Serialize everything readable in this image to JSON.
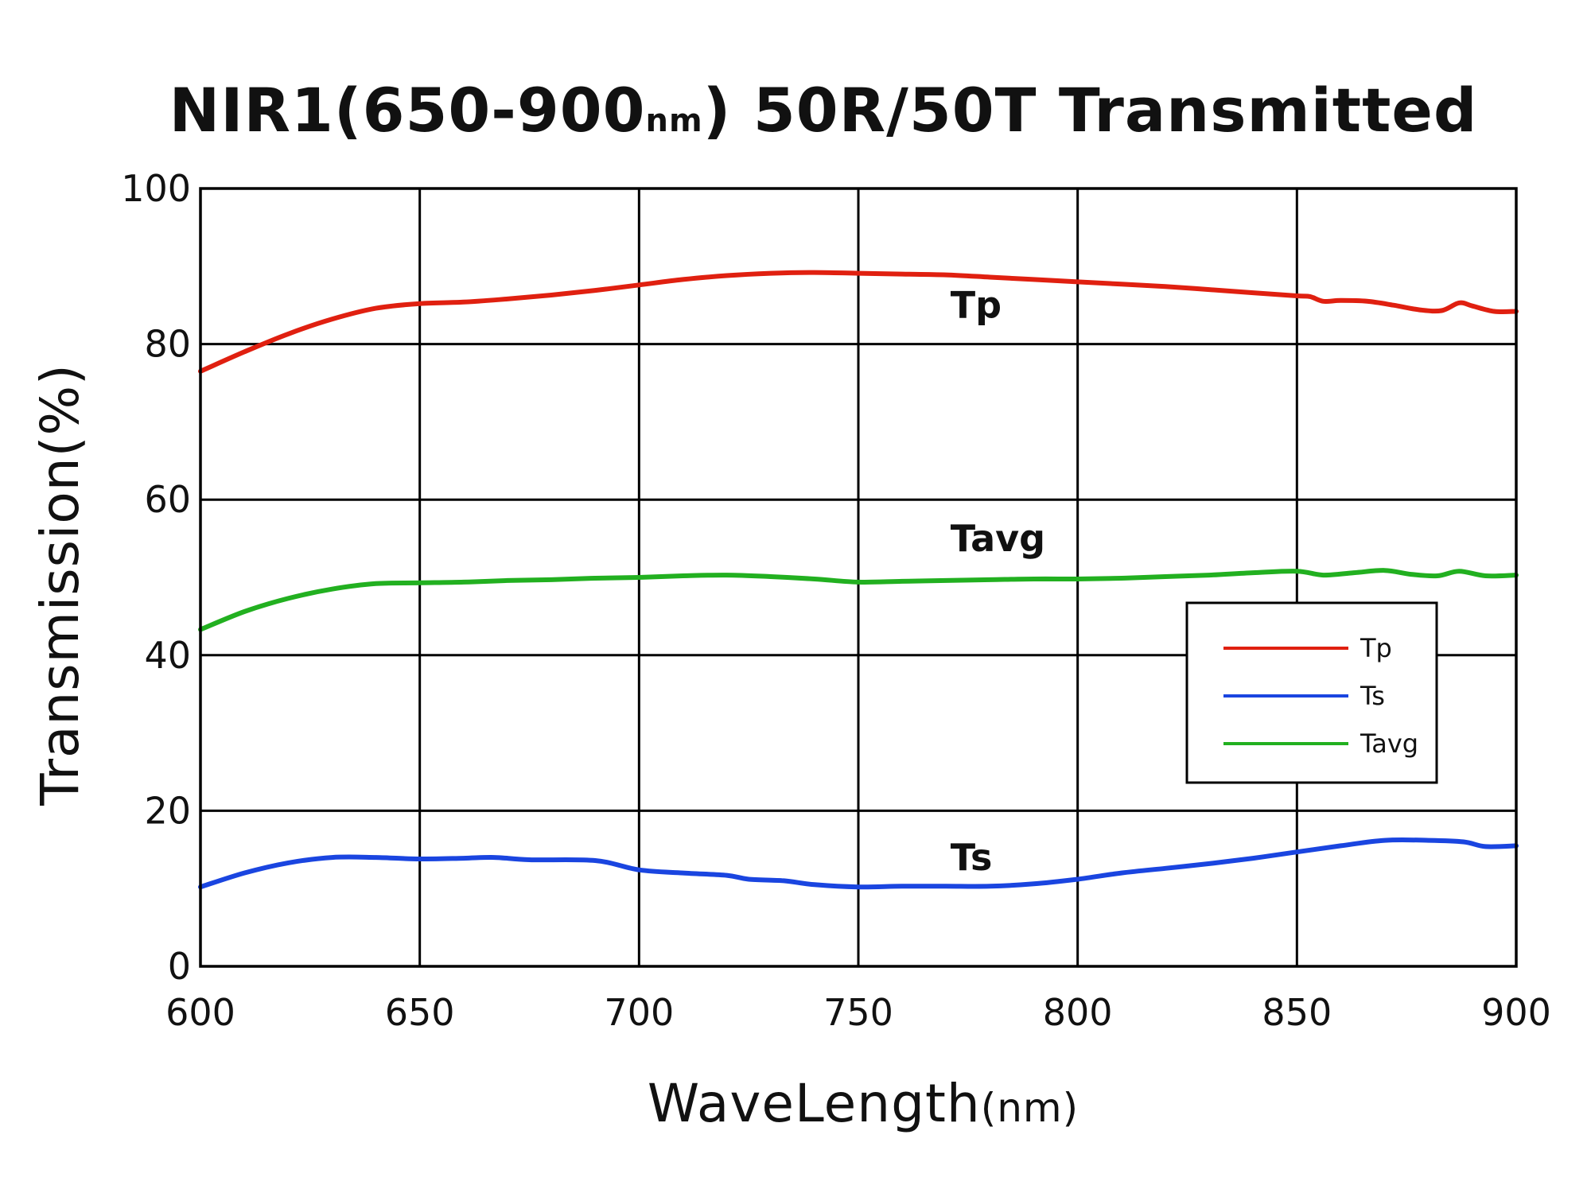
{
  "chart_data": {
    "type": "line",
    "title": "NIR1(650-900",
    "title_unit": "nm",
    "title_suffix": ") 50R/50T Transmitted",
    "xlabel": "WaveLength",
    "xlabel_unit": "(nm)",
    "ylabel": "Transmission(%)",
    "xlim": [
      600,
      900
    ],
    "ylim": [
      0,
      100
    ],
    "x_ticks": [
      600,
      650,
      700,
      750,
      800,
      850,
      900
    ],
    "y_ticks": [
      0,
      20,
      40,
      60,
      80,
      100
    ],
    "grid": true,
    "legend_position": "center-right",
    "series": [
      {
        "name": "Tp",
        "color": "#e02010",
        "label_at": [
          765,
          85
        ],
        "points": [
          [
            600,
            76.5
          ],
          [
            610,
            79.0
          ],
          [
            620,
            81.3
          ],
          [
            630,
            83.2
          ],
          [
            640,
            84.6
          ],
          [
            650,
            85.2
          ],
          [
            660,
            85.4
          ],
          [
            670,
            85.8
          ],
          [
            680,
            86.3
          ],
          [
            690,
            86.9
          ],
          [
            700,
            87.6
          ],
          [
            710,
            88.3
          ],
          [
            720,
            88.8
          ],
          [
            730,
            89.1
          ],
          [
            740,
            89.2
          ],
          [
            750,
            89.1
          ],
          [
            760,
            89.0
          ],
          [
            770,
            88.9
          ],
          [
            780,
            88.6
          ],
          [
            790,
            88.3
          ],
          [
            800,
            88.0
          ],
          [
            810,
            87.7
          ],
          [
            820,
            87.4
          ],
          [
            830,
            87.0
          ],
          [
            840,
            86.6
          ],
          [
            850,
            86.2
          ],
          [
            853,
            86.1
          ],
          [
            856,
            85.5
          ],
          [
            860,
            85.6
          ],
          [
            866,
            85.5
          ],
          [
            872,
            85.0
          ],
          [
            878,
            84.4
          ],
          [
            883,
            84.3
          ],
          [
            887,
            85.3
          ],
          [
            890,
            84.9
          ],
          [
            895,
            84.2
          ],
          [
            900,
            84.2
          ]
        ]
      },
      {
        "name": "Ts",
        "color": "#1a45e0",
        "label_at": [
          765,
          14
        ],
        "points": [
          [
            600,
            10.2
          ],
          [
            610,
            12.0
          ],
          [
            620,
            13.3
          ],
          [
            630,
            14.0
          ],
          [
            640,
            14.0
          ],
          [
            650,
            13.8
          ],
          [
            660,
            13.9
          ],
          [
            667,
            14.0
          ],
          [
            675,
            13.7
          ],
          [
            690,
            13.6
          ],
          [
            700,
            12.4
          ],
          [
            710,
            12.0
          ],
          [
            720,
            11.7
          ],
          [
            725,
            11.2
          ],
          [
            733,
            11.0
          ],
          [
            740,
            10.5
          ],
          [
            750,
            10.2
          ],
          [
            760,
            10.3
          ],
          [
            770,
            10.3
          ],
          [
            780,
            10.3
          ],
          [
            790,
            10.6
          ],
          [
            800,
            11.2
          ],
          [
            810,
            12.0
          ],
          [
            820,
            12.6
          ],
          [
            830,
            13.2
          ],
          [
            840,
            13.9
          ],
          [
            850,
            14.7
          ],
          [
            860,
            15.5
          ],
          [
            870,
            16.2
          ],
          [
            880,
            16.2
          ],
          [
            888,
            16.0
          ],
          [
            893,
            15.4
          ],
          [
            900,
            15.5
          ]
        ]
      },
      {
        "name": "Tavg",
        "color": "#22b020",
        "label_at": [
          765,
          55
        ],
        "points": [
          [
            600,
            43.3
          ],
          [
            610,
            45.6
          ],
          [
            620,
            47.3
          ],
          [
            630,
            48.5
          ],
          [
            640,
            49.2
          ],
          [
            650,
            49.3
          ],
          [
            660,
            49.4
          ],
          [
            670,
            49.6
          ],
          [
            680,
            49.7
          ],
          [
            690,
            49.9
          ],
          [
            700,
            50.0
          ],
          [
            710,
            50.2
          ],
          [
            720,
            50.3
          ],
          [
            730,
            50.1
          ],
          [
            740,
            49.8
          ],
          [
            750,
            49.4
          ],
          [
            760,
            49.5
          ],
          [
            770,
            49.6
          ],
          [
            780,
            49.7
          ],
          [
            790,
            49.8
          ],
          [
            800,
            49.8
          ],
          [
            810,
            49.9
          ],
          [
            820,
            50.1
          ],
          [
            830,
            50.3
          ],
          [
            840,
            50.6
          ],
          [
            850,
            50.8
          ],
          [
            856,
            50.3
          ],
          [
            863,
            50.6
          ],
          [
            870,
            50.9
          ],
          [
            876,
            50.4
          ],
          [
            882,
            50.2
          ],
          [
            887,
            50.8
          ],
          [
            893,
            50.2
          ],
          [
            900,
            50.3
          ]
        ]
      }
    ],
    "legend": [
      "Tp",
      "Ts",
      "Tavg"
    ]
  }
}
